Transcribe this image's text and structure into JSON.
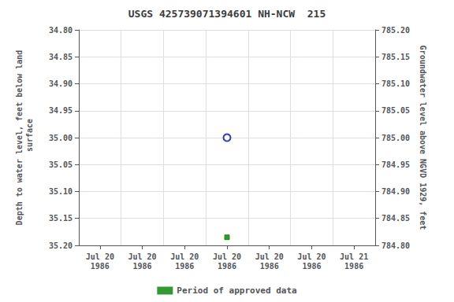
{
  "chart_data": {
    "type": "scatter",
    "title": "USGS 425739071394601 NH-NCW  215",
    "y_label": "Depth to water level, feet below land\n surface",
    "y2_label": "Groundwater level above NGVD 1929, feet",
    "categories": [
      "Jul 20\n1986",
      "Jul 20\n1986",
      "Jul 20\n1986",
      "Jul 20\n1986",
      "Jul 20\n1986",
      "Jul 20\n1986",
      "Jul 21\n1986"
    ],
    "series": [
      {
        "color": "#0000cc",
        "marker": "open_circle",
        "values": [
          null,
          null,
          null,
          35.0,
          null,
          null,
          null
        ]
      },
      {
        "name": "Period of approved data",
        "color": "#008000",
        "marker": "square",
        "values": [
          null,
          null,
          null,
          35.185,
          null,
          null,
          null
        ]
      }
    ],
    "ylim": [
      35.2,
      34.8
    ],
    "yticks": [
      {
        "value": 34.8,
        "label": "34.80"
      },
      {
        "value": 34.85,
        "label": "34.85"
      },
      {
        "value": 34.9,
        "label": "34.90"
      },
      {
        "value": 34.95,
        "label": "34.95"
      },
      {
        "value": 35.0,
        "label": "35.00"
      },
      {
        "value": 35.05,
        "label": "35.05"
      },
      {
        "value": 35.1,
        "label": "35.10"
      },
      {
        "value": 35.15,
        "label": "35.15"
      },
      {
        "value": 35.2,
        "label": "35.20"
      }
    ],
    "y2lim": [
      784.8,
      785.2
    ],
    "y2ticks": [
      {
        "value": 784.8,
        "label": "784.80"
      },
      {
        "value": 784.85,
        "label": "784.85"
      },
      {
        "value": 784.9,
        "label": "784.90"
      },
      {
        "value": 784.95,
        "label": "784.95"
      },
      {
        "value": 785.0,
        "label": "785.00"
      },
      {
        "value": 785.05,
        "label": "785.05"
      },
      {
        "value": 785.1,
        "label": "785.10"
      },
      {
        "value": 785.15,
        "label": "785.15"
      },
      {
        "value": 785.2,
        "label": "785.20"
      }
    ],
    "grid": true,
    "legend": "bottom"
  }
}
